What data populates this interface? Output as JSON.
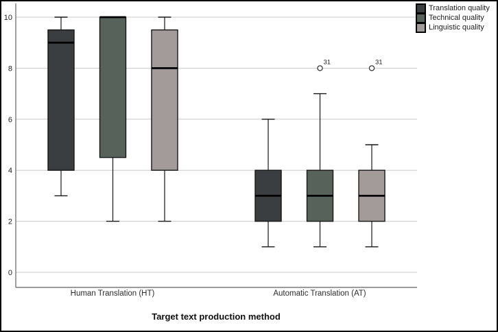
{
  "chart_data": {
    "type": "boxplot",
    "title": "",
    "xlabel": "Target text production method",
    "ylabel": "",
    "ylim": [
      0,
      10
    ],
    "yticks": [
      0,
      2,
      4,
      6,
      8,
      10
    ],
    "grid": "horizontal",
    "legend_position": "top-right",
    "categories": [
      "Human Translation (HT)",
      "Automatic Translation (AT)"
    ],
    "colors": {
      "gridline": "#c9c9c9",
      "axis": "#616161",
      "box_outline": "#161616",
      "median": "#000000",
      "outlier_fill": "#ffffff"
    },
    "series": [
      {
        "name": "Translation quality",
        "color": "#3b3e40",
        "boxes": [
          {
            "category": "Human Translation (HT)",
            "whisker_low": 3,
            "q1": 4,
            "median": 9,
            "q3": 9.5,
            "whisker_high": 10,
            "outliers": []
          },
          {
            "category": "Automatic Translation (AT)",
            "whisker_low": 1,
            "q1": 2,
            "median": 3,
            "q3": 4,
            "whisker_high": 6,
            "outliers": []
          }
        ]
      },
      {
        "name": "Technical quality",
        "color": "#57635a",
        "boxes": [
          {
            "category": "Human Translation (HT)",
            "whisker_low": 2,
            "q1": 4.5,
            "median": 10,
            "q3": 10,
            "whisker_high": 10,
            "outliers": []
          },
          {
            "category": "Automatic Translation (AT)",
            "whisker_low": 1,
            "q1": 2,
            "median": 3,
            "q3": 4,
            "whisker_high": 7,
            "outliers": [
              {
                "value": 8,
                "label": "31"
              }
            ]
          }
        ]
      },
      {
        "name": "Linguistic quality",
        "color": "#a29b9a",
        "boxes": [
          {
            "category": "Human Translation (HT)",
            "whisker_low": 2,
            "q1": 4,
            "median": 8,
            "q3": 9.5,
            "whisker_high": 10,
            "outliers": []
          },
          {
            "category": "Automatic Translation (AT)",
            "whisker_low": 1,
            "q1": 2,
            "median": 3,
            "q3": 4,
            "whisker_high": 5,
            "outliers": [
              {
                "value": 8,
                "label": "31"
              }
            ]
          }
        ]
      }
    ]
  }
}
